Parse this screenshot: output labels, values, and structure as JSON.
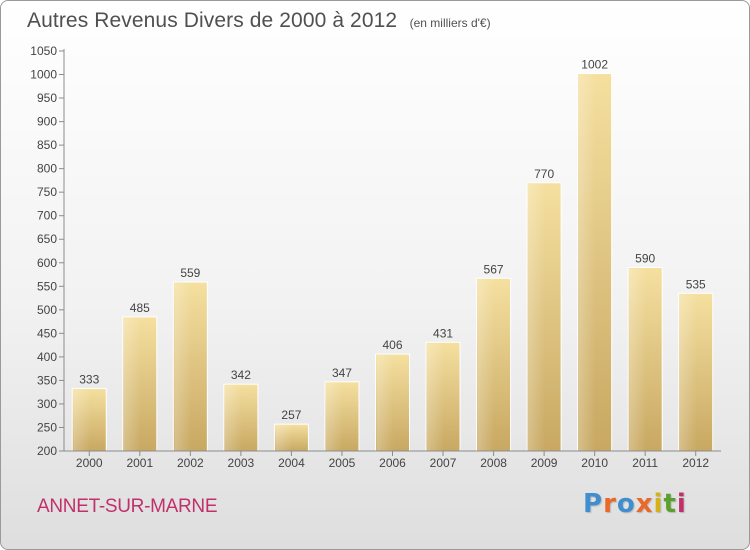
{
  "chart_data": {
    "type": "bar",
    "title": "Autres Revenus Divers de 2000 à 2012",
    "subtitle": "(en milliers d'€)",
    "categories": [
      "2000",
      "2001",
      "2002",
      "2003",
      "2004",
      "2005",
      "2006",
      "2007",
      "2008",
      "2009",
      "2010",
      "2011",
      "2012"
    ],
    "values": [
      333,
      485,
      559,
      342,
      257,
      347,
      406,
      431,
      567,
      770,
      1002,
      590,
      535
    ],
    "data_labels": [
      "333",
      "485",
      "559",
      "342",
      "257",
      "347",
      "406",
      "431",
      "567",
      "770",
      "1002",
      "590",
      "535"
    ],
    "ylim": [
      200,
      1050
    ],
    "yticks": [
      200,
      250,
      300,
      350,
      400,
      450,
      500,
      550,
      600,
      650,
      700,
      750,
      800,
      850,
      900,
      950,
      1000,
      1050
    ],
    "grid": false,
    "legend": "none",
    "bar_color_light": "#f5e0a0",
    "bar_color_dark": "#c8a862"
  },
  "footer": {
    "city": "ANNET-SUR-MARNE",
    "logo_text": "Proxiti",
    "logo_colors": [
      "#3f8fd0",
      "#e8692a",
      "#3f8fd0",
      "#e8692a",
      "#d4b21b",
      "#5aa02c",
      "#c2306c"
    ]
  }
}
